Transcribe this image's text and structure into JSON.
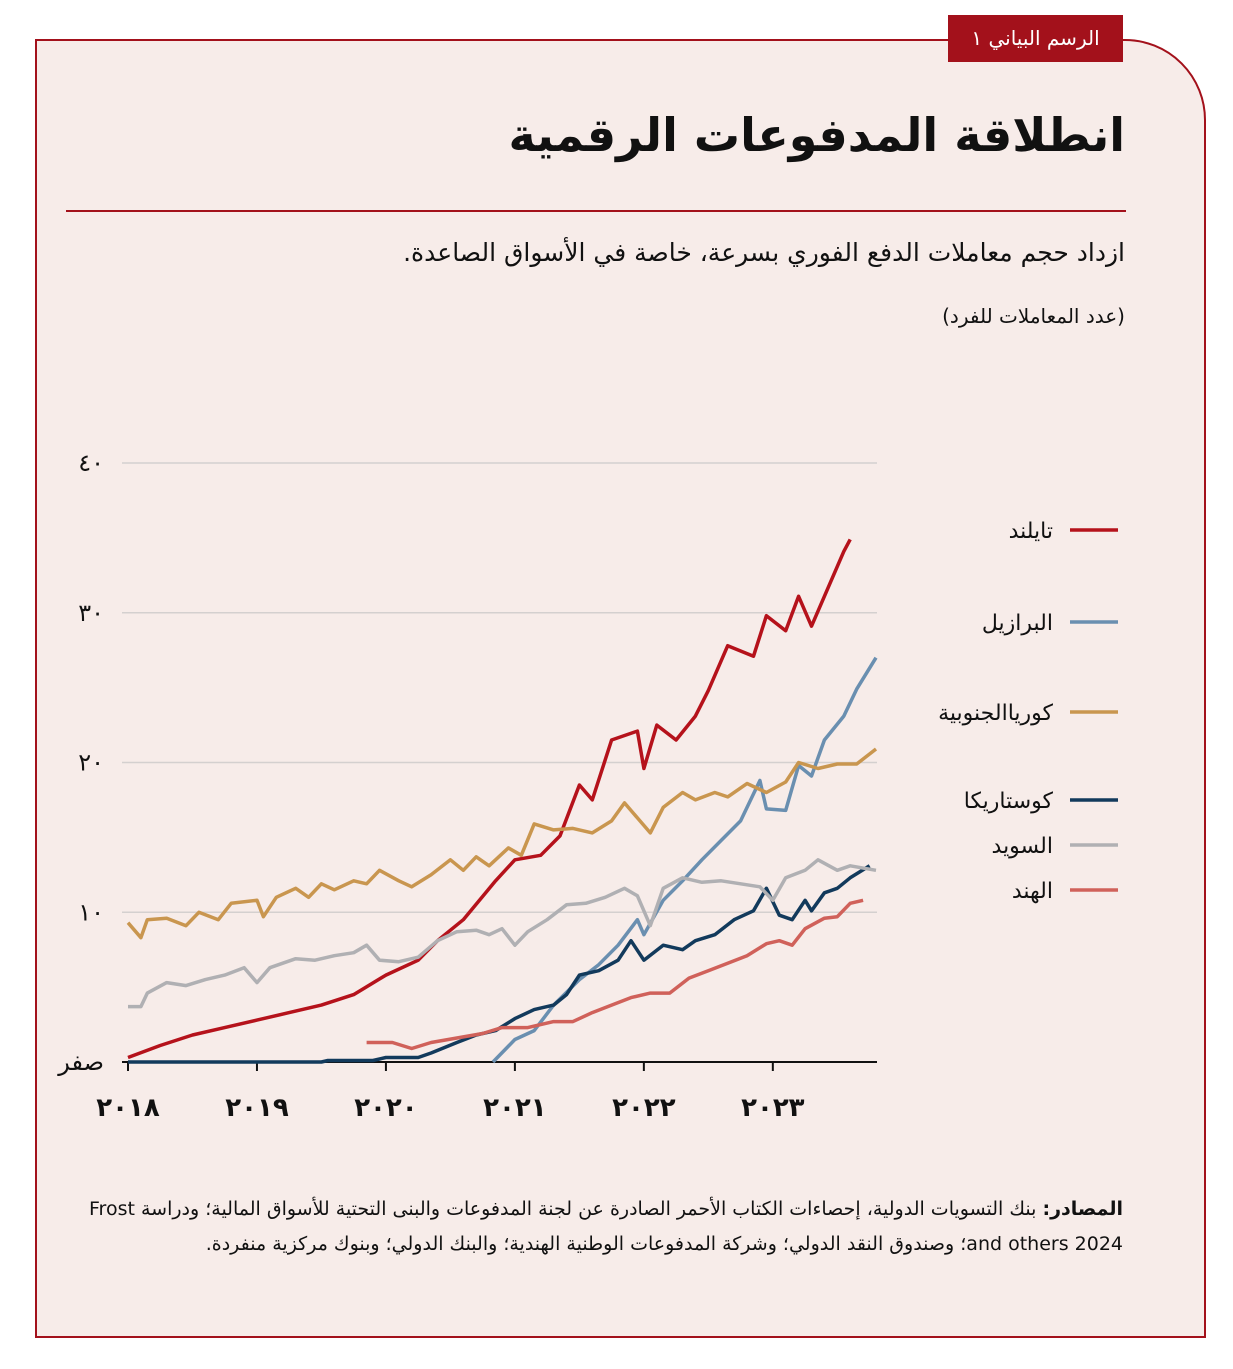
{
  "tab_label": "الرسم البياني ١",
  "chart_data": {
    "type": "line",
    "title": "انطلاقة المدفوعات الرقمية",
    "subtitle": "ازداد حجم معاملات الدفع الفوري بسرعة، خاصة في الأسواق الصاعدة.",
    "y_label": "(عدد المعاملات للفرد)",
    "source_label": "المصادر:",
    "source_text": "بنك التسويات الدولية، إحصاءات الكتاب الأحمر الصادرة عن لجنة المدفوعات والبنى التحتية للأسواق المالية؛ ودراسة Frost and others 2024؛ وصندوق النقد الدولي؛ وشركة المدفوعات الوطنية الهندية؛ والبنك الدولي؛ وبنوك مركزية منفردة.",
    "xlim": [
      2018,
      2023.8
    ],
    "xticks": [
      {
        "value": 2018,
        "label": "٢٠١٨"
      },
      {
        "value": 2019,
        "label": "٢٠١٩"
      },
      {
        "value": 2020,
        "label": "٢٠٢٠"
      },
      {
        "value": 2021,
        "label": "٢٠٢١"
      },
      {
        "value": 2022,
        "label": "٢٠٢٢"
      },
      {
        "value": 2023,
        "label": "٢٠٢٣"
      }
    ],
    "ylim": [
      0,
      40
    ],
    "yticks": [
      {
        "value": 0,
        "label": "صفر"
      },
      {
        "value": 10,
        "label": "١٠"
      },
      {
        "value": 20,
        "label": "٢٠"
      },
      {
        "value": 30,
        "label": "٣٠"
      },
      {
        "value": 40,
        "label": "٤٠"
      }
    ],
    "grid": true,
    "series": [
      {
        "name": "تايلند",
        "color": "#b5121b",
        "x": [
          2018,
          2018.25,
          2018.5,
          2018.75,
          2019,
          2019.25,
          2019.5,
          2019.75,
          2020,
          2020.25,
          2020.4,
          2020.6,
          2020.85,
          2021,
          2021.2,
          2021.35,
          2021.5,
          2021.6,
          2021.75,
          2021.95,
          2022,
          2022.1,
          2022.25,
          2022.4,
          2022.5,
          2022.65,
          2022.85,
          2022.95,
          2023.1,
          2023.2,
          2023.3,
          2023.4,
          2023.55,
          2023.6
        ],
        "values": [
          0.3,
          1.1,
          1.8,
          2.3,
          2.8,
          3.3,
          3.8,
          4.5,
          5.8,
          6.8,
          8.1,
          9.5,
          12.1,
          13.5,
          13.8,
          15.1,
          18.5,
          17.5,
          21.5,
          22.1,
          19.6,
          22.5,
          21.5,
          23.1,
          24.8,
          27.8,
          27.1,
          29.8,
          28.8,
          31.1,
          29.1,
          31.1,
          34.1,
          34.9
        ]
      },
      {
        "name": "البرازيل",
        "color": "#6a8fb0",
        "x": [
          2020.83,
          2021,
          2021.15,
          2021.3,
          2021.5,
          2021.65,
          2021.8,
          2021.95,
          2022,
          2022.15,
          2022.3,
          2022.45,
          2022.6,
          2022.75,
          2022.9,
          2022.95,
          2023.1,
          2023.2,
          2023.3,
          2023.4,
          2023.55,
          2023.65,
          2023.8
        ],
        "values": [
          0,
          1.5,
          2.1,
          3.8,
          5.5,
          6.5,
          7.8,
          9.5,
          8.5,
          10.8,
          12.1,
          13.5,
          14.8,
          16.1,
          18.8,
          16.9,
          16.8,
          19.8,
          19.1,
          21.5,
          23.1,
          24.9,
          27
        ]
      },
      {
        "name": "كورياالجنوبية",
        "color": "#c9964f",
        "x": [
          2018,
          2018.1,
          2018.15,
          2018.3,
          2018.45,
          2018.55,
          2018.7,
          2018.8,
          2019,
          2019.05,
          2019.15,
          2019.3,
          2019.4,
          2019.5,
          2019.6,
          2019.75,
          2019.85,
          2019.95,
          2020.1,
          2020.2,
          2020.35,
          2020.5,
          2020.6,
          2020.7,
          2020.8,
          2020.95,
          2021.05,
          2021.15,
          2021.3,
          2021.45,
          2021.6,
          2021.75,
          2021.85,
          2021.95,
          2022.05,
          2022.15,
          2022.3,
          2022.4,
          2022.55,
          2022.65,
          2022.8,
          2022.95,
          2023.1,
          2023.2,
          2023.35,
          2023.5,
          2023.65,
          2023.8
        ],
        "values": [
          9.3,
          8.3,
          9.5,
          9.6,
          9.1,
          10,
          9.5,
          10.6,
          10.8,
          9.7,
          11,
          11.6,
          11,
          11.9,
          11.5,
          12.1,
          11.9,
          12.8,
          12.1,
          11.7,
          12.5,
          13.5,
          12.8,
          13.7,
          13.1,
          14.3,
          13.8,
          15.9,
          15.5,
          15.6,
          15.3,
          16.1,
          17.3,
          16.3,
          15.3,
          17,
          18,
          17.5,
          18,
          17.7,
          18.6,
          18,
          18.7,
          20,
          19.6,
          19.9,
          19.9,
          20.9
        ]
      },
      {
        "name": "كوستاريكا",
        "color": "#123a5c",
        "x": [
          2018,
          2019.5,
          2019.55,
          2019.9,
          2020,
          2020.25,
          2020.35,
          2020.55,
          2020.7,
          2020.85,
          2021,
          2021.15,
          2021.3,
          2021.4,
          2021.5,
          2021.65,
          2021.8,
          2021.9,
          2022,
          2022.15,
          2022.3,
          2022.4,
          2022.55,
          2022.7,
          2022.85,
          2022.95,
          2023.05,
          2023.15,
          2023.25,
          2023.3,
          2023.4,
          2023.5,
          2023.6,
          2023.75
        ],
        "values": [
          0,
          0,
          0.1,
          0.1,
          0.3,
          0.3,
          0.6,
          1.3,
          1.8,
          2.1,
          2.9,
          3.5,
          3.8,
          4.5,
          5.8,
          6.1,
          6.8,
          8.1,
          6.8,
          7.8,
          7.5,
          8.1,
          8.5,
          9.5,
          10.1,
          11.6,
          9.8,
          9.5,
          10.8,
          10.1,
          11.3,
          11.6,
          12.3,
          13.1
        ]
      },
      {
        "name": "السويد",
        "color": "#b0b0b3",
        "x": [
          2018,
          2018.1,
          2018.15,
          2018.3,
          2018.45,
          2018.6,
          2018.75,
          2018.9,
          2019,
          2019.1,
          2019.3,
          2019.45,
          2019.6,
          2019.75,
          2019.85,
          2019.95,
          2020.1,
          2020.25,
          2020.4,
          2020.55,
          2020.7,
          2020.8,
          2020.9,
          2021,
          2021.1,
          2021.25,
          2021.4,
          2021.55,
          2021.7,
          2021.85,
          2021.95,
          2022.05,
          2022.15,
          2022.3,
          2022.45,
          2022.6,
          2022.75,
          2022.9,
          2023,
          2023.1,
          2023.25,
          2023.35,
          2023.5,
          2023.6,
          2023.8
        ],
        "values": [
          3.7,
          3.7,
          4.6,
          5.3,
          5.1,
          5.5,
          5.8,
          6.3,
          5.3,
          6.3,
          6.9,
          6.8,
          7.1,
          7.3,
          7.8,
          6.8,
          6.7,
          7,
          8.1,
          8.7,
          8.8,
          8.5,
          8.9,
          7.8,
          8.7,
          9.5,
          10.5,
          10.6,
          11,
          11.6,
          11.1,
          9.1,
          11.6,
          12.3,
          12,
          12.1,
          11.9,
          11.7,
          10.8,
          12.3,
          12.8,
          13.5,
          12.8,
          13.1,
          12.8
        ]
      },
      {
        "name": "الهند",
        "color": "#d0615a",
        "x": [
          2019.85,
          2020.05,
          2020.2,
          2020.35,
          2020.55,
          2020.75,
          2020.9,
          2021.1,
          2021.3,
          2021.45,
          2021.6,
          2021.75,
          2021.9,
          2022.05,
          2022.2,
          2022.35,
          2022.5,
          2022.65,
          2022.8,
          2022.95,
          2023.05,
          2023.15,
          2023.25,
          2023.4,
          2023.5,
          2023.6,
          2023.7
        ],
        "values": [
          1.3,
          1.3,
          0.9,
          1.3,
          1.6,
          1.9,
          2.3,
          2.3,
          2.7,
          2.7,
          3.3,
          3.8,
          4.3,
          4.6,
          4.6,
          5.6,
          6.1,
          6.6,
          7.1,
          7.9,
          8.1,
          7.8,
          8.9,
          9.6,
          9.7,
          10.6,
          10.8
        ]
      }
    ]
  }
}
